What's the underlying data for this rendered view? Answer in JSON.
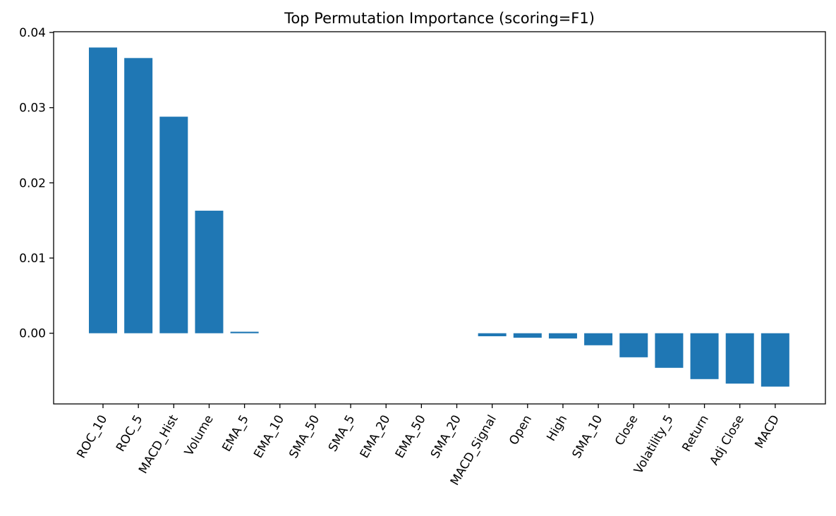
{
  "chart_data": {
    "type": "bar",
    "title": "Top Permutation Importance (scoring=F1)",
    "xlabel": "",
    "ylabel": "",
    "categories": [
      "ROC_10",
      "ROC_5",
      "MACD_Hist",
      "Volume",
      "EMA_5",
      "EMA_10",
      "SMA_50",
      "SMA_5",
      "EMA_20",
      "EMA_50",
      "SMA_20",
      "MACD_Signal",
      "Open",
      "High",
      "SMA_10",
      "Close",
      "Volatility_5",
      "Return",
      "Adj Close",
      "MACD"
    ],
    "values": [
      0.038,
      0.0366,
      0.0288,
      0.0163,
      0.0002,
      0.0,
      0.0,
      0.0,
      0.0,
      0.0,
      0.0,
      -0.0004,
      -0.0006,
      -0.0007,
      -0.0016,
      -0.0032,
      -0.0046,
      -0.0061,
      -0.0067,
      -0.0071
    ],
    "yticks": [
      "0.00",
      "0.01",
      "0.02",
      "0.03",
      "0.04"
    ],
    "ylim": [
      -0.0094,
      0.0401
    ],
    "bar_color": "#1f77b4",
    "grid": false,
    "legend": "none"
  }
}
